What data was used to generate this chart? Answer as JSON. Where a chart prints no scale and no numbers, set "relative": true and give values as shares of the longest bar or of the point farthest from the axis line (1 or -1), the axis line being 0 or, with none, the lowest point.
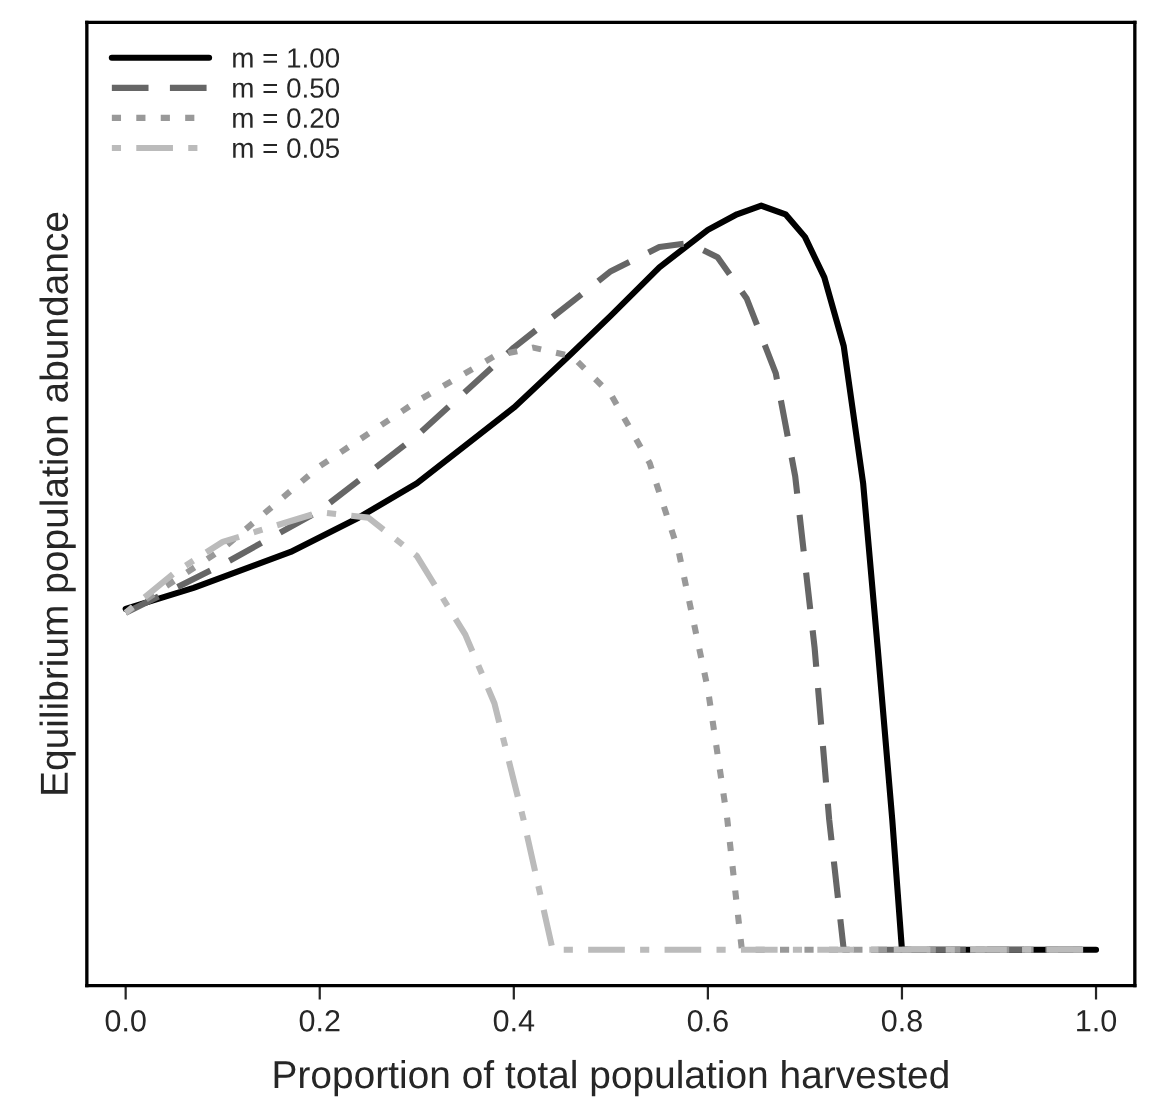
{
  "chart_data": {
    "type": "line",
    "relative": true,
    "xlabel": "Proportion of total population harvested",
    "ylabel": "Equilibrium population abundance",
    "xlim": [
      -0.04,
      1.04
    ],
    "xticks": [
      {
        "value": 0,
        "label": "0.0"
      },
      {
        "value": 0.2,
        "label": "0.2"
      },
      {
        "value": 0.4,
        "label": "0.4"
      },
      {
        "value": 0.6,
        "label": "0.6"
      },
      {
        "value": 0.8,
        "label": "0.8"
      },
      {
        "value": 1,
        "label": "1.0"
      }
    ],
    "legend": "top left",
    "grid": false,
    "series": [
      {
        "name": "m = 1.00",
        "color": "#000000",
        "line_style": "solid",
        "x": [
          0,
          0.07,
          0.17,
          0.24,
          0.3,
          0.4,
          0.46,
          0.5,
          0.55,
          0.6,
          0.63,
          0.655,
          0.68,
          0.7,
          0.72,
          0.74,
          0.76,
          0.775,
          0.79,
          0.8,
          1.0
        ],
        "values": [
          0.483,
          0.51,
          0.556,
          0.6,
          0.644,
          0.741,
          0.811,
          0.859,
          0.921,
          0.969,
          0.989,
          1.0,
          0.989,
          0.96,
          0.908,
          0.82,
          0.644,
          0.433,
          0.213,
          0.046,
          0.046
        ]
      },
      {
        "name": "m = 0.50",
        "color": "#666666",
        "line_style": "dashed",
        "x": [
          0,
          0.1,
          0.2,
          0.3,
          0.4,
          0.5,
          0.55,
          0.58,
          0.61,
          0.64,
          0.67,
          0.69,
          0.71,
          0.725,
          0.74,
          1.0
        ],
        "values": [
          0.478,
          0.54,
          0.609,
          0.705,
          0.818,
          0.916,
          0.947,
          0.952,
          0.934,
          0.881,
          0.785,
          0.653,
          0.433,
          0.213,
          0.046,
          0.046
        ]
      },
      {
        "name": "m = 0.20",
        "color": "#999999",
        "line_style": "dotted",
        "x": [
          0,
          0.1,
          0.2,
          0.3,
          0.38,
          0.42,
          0.46,
          0.5,
          0.54,
          0.57,
          0.6,
          0.62,
          0.635,
          1.0
        ],
        "values": [
          0.478,
          0.56,
          0.666,
          0.749,
          0.807,
          0.818,
          0.807,
          0.758,
          0.67,
          0.556,
          0.38,
          0.213,
          0.046,
          0.046
        ]
      },
      {
        "name": "m = 0.05",
        "color": "#bbbbbb",
        "line_style": "dashdot",
        "x": [
          0,
          0.05,
          0.1,
          0.2,
          0.25,
          0.3,
          0.35,
          0.38,
          0.41,
          0.44,
          1.0
        ],
        "values": [
          0.478,
          0.529,
          0.569,
          0.607,
          0.6,
          0.551,
          0.45,
          0.362,
          0.213,
          0.046,
          0.046
        ]
      }
    ]
  }
}
